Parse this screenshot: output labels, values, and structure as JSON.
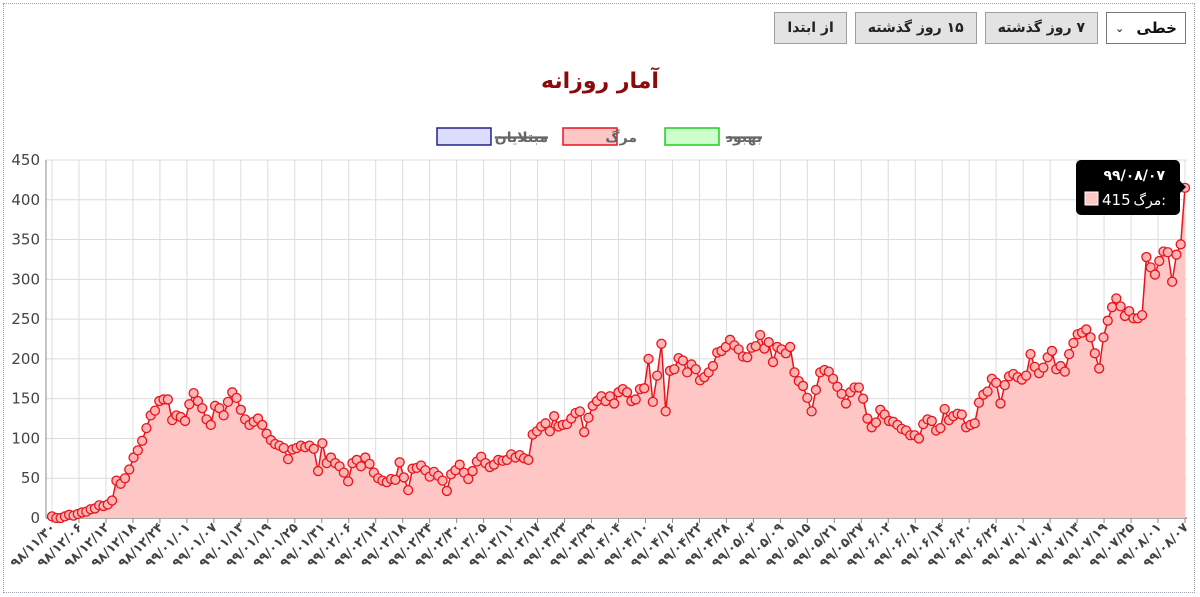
{
  "toolbar": {
    "chart_type_value": "خطی",
    "btn_7_days": "۷ روز گذشته",
    "btn_15_days": "۱۵ روز گذشته",
    "btn_from_start": "از ابتدا",
    "select_icon": "chevron-down-icon"
  },
  "colors": {
    "death_line": "#e8141c",
    "death_fill": "#ffc6c6",
    "recovery_line": "#22cc22",
    "recovery_fill": "#ccffcc",
    "infected_line": "#22228a",
    "infected_fill": "#dcdcff",
    "title": "#8b0a0a"
  },
  "chart_data": {
    "type": "area",
    "title": "آمار روزانه",
    "xlabel": "",
    "ylabel": "",
    "ylim": [
      0,
      450
    ],
    "yticks": [
      0,
      50,
      100,
      150,
      200,
      250,
      300,
      350,
      400,
      450
    ],
    "grid": true,
    "legend_position": "top-center",
    "legend": [
      {
        "name": "بهبود",
        "hidden": true
      },
      {
        "name": "مرگ",
        "hidden": false
      },
      {
        "name": "مبتلایان",
        "hidden": true
      }
    ],
    "x_tick_labels": [
      "۹۸/۱۱/۳۰",
      "۹۸/۱۲/۰۶",
      "۹۸/۱۲/۱۲",
      "۹۸/۱۲/۱۸",
      "۹۸/۱۲/۲۴",
      "۹۹/۰۱/۰۱",
      "۹۹/۰۱/۰۷",
      "۹۹/۰۱/۱۳",
      "۹۹/۰۱/۱۹",
      "۹۹/۰۱/۲۵",
      "۹۹/۰۱/۳۱",
      "۹۹/۰۲/۰۶",
      "۹۹/۰۲/۱۲",
      "۹۹/۰۲/۱۸",
      "۹۹/۰۲/۲۴",
      "۹۹/۰۲/۳۰",
      "۹۹/۰۳/۰۵",
      "۹۹/۰۳/۱۱",
      "۹۹/۰۳/۱۷",
      "۹۹/۰۳/۲۳",
      "۹۹/۰۳/۲۹",
      "۹۹/۰۴/۰۴",
      "۹۹/۰۴/۱۰",
      "۹۹/۰۴/۱۶",
      "۹۹/۰۴/۲۲",
      "۹۹/۰۴/۲۸",
      "۹۹/۰۵/۰۳",
      "۹۹/۰۵/۰۹",
      "۹۹/۰۵/۱۵",
      "۹۹/۰۵/۲۱",
      "۹۹/۰۵/۲۷",
      "۹۹/۰۶/۰۲",
      "۹۹/۰۶/۰۸",
      "۹۹/۰۶/۱۴",
      "۹۹/۰۶/۲۰",
      "۹۹/۰۶/۲۶",
      "۹۹/۰۷/۰۱",
      "۹۹/۰۷/۰۷",
      "۹۹/۰۷/۱۳",
      "۹۹/۰۷/۱۹",
      "۹۹/۰۷/۲۵",
      "۹۹/۰۸/۰۱",
      "۹۹/۰۸/۰۷"
    ],
    "series": [
      {
        "name": "مرگ",
        "values": [
          2,
          0,
          0,
          2,
          4,
          3,
          5,
          7,
          8,
          11,
          12,
          16,
          15,
          17,
          22,
          47,
          43,
          50,
          61,
          76,
          85,
          97,
          113,
          129,
          135,
          147,
          149,
          149,
          123,
          129,
          127,
          122,
          143,
          157,
          147,
          138,
          124,
          117,
          141,
          138,
          129,
          146,
          158,
          151,
          136,
          124,
          117,
          121,
          125,
          117,
          106,
          98,
          93,
          91,
          88,
          74,
          86,
          88,
          91,
          89,
          91,
          87,
          59,
          94,
          69,
          76,
          69,
          65,
          57,
          46,
          69,
          73,
          65,
          76,
          68,
          57,
          50,
          47,
          45,
          49,
          48,
          70,
          51,
          35,
          62,
          63,
          66,
          60,
          52,
          58,
          53,
          47,
          34,
          55,
          60,
          67,
          57,
          49,
          59,
          71,
          77,
          69,
          64,
          67,
          73,
          72,
          73,
          80,
          76,
          79,
          75,
          73,
          105,
          109,
          115,
          119,
          109,
          128,
          115,
          117,
          118,
          125,
          132,
          134,
          108,
          126,
          141,
          147,
          153,
          147,
          153,
          144,
          158,
          162,
          158,
          147,
          149,
          162,
          163,
          200,
          146,
          179,
          219,
          134,
          185,
          187,
          201,
          198,
          183,
          193,
          187,
          173,
          177,
          183,
          191,
          208,
          210,
          215,
          224,
          217,
          212,
          203,
          202,
          214,
          216,
          230,
          213,
          221,
          196,
          215,
          212,
          207,
          215,
          183,
          172,
          166,
          151,
          134,
          161,
          183,
          186,
          184,
          175,
          165,
          156,
          144,
          158,
          164,
          164,
          150,
          125,
          114,
          120,
          136,
          130,
          122,
          121,
          117,
          112,
          110,
          104,
          104,
          100,
          118,
          124,
          122,
          110,
          113,
          137,
          123,
          128,
          131,
          130,
          114,
          117,
          119,
          145,
          155,
          159,
          175,
          170,
          144,
          167,
          178,
          181,
          177,
          174,
          179,
          206,
          190,
          182,
          189,
          202,
          210,
          187,
          191,
          184,
          206,
          220,
          231,
          233,
          237,
          227,
          207,
          188,
          227,
          248,
          265,
          276,
          266,
          254,
          260,
          251,
          251,
          255,
          328,
          315,
          306,
          323,
          335,
          334,
          297,
          331,
          344,
          415
        ]
      }
    ],
    "tooltip": {
      "date": "۹۹/۰۸/۰۷",
      "label": "مرگ",
      "value": "415"
    }
  }
}
